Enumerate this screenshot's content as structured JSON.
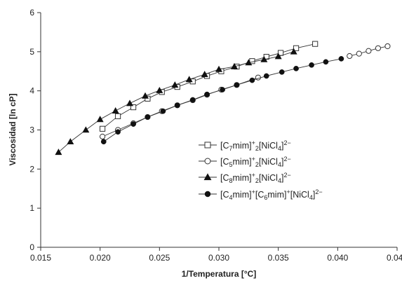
{
  "chart_data": {
    "type": "line",
    "title": "",
    "xlabel": "1/Temperatura [°C]",
    "ylabel": "Viscosidad [ln cP]",
    "xlim": [
      0.015,
      0.045
    ],
    "ylim": [
      0,
      6
    ],
    "x_ticks": [
      "0.015",
      "0.020",
      "0.025",
      "0.030",
      "0.035",
      "0.040",
      "0.045"
    ],
    "y_ticks": [
      "0",
      "1",
      "2",
      "3",
      "4",
      "5",
      "6"
    ],
    "grid": false,
    "legend_position": "right",
    "series": [
      {
        "name": "[C7mim]+2[NiCl4]2−",
        "marker": "open-square",
        "x": [
          0.0202,
          0.0215,
          0.0228,
          0.024,
          0.0252,
          0.0265,
          0.0278,
          0.029,
          0.0302,
          0.0315,
          0.0328,
          0.034,
          0.0352,
          0.0365,
          0.0381
        ],
        "y": [
          3.03,
          3.35,
          3.58,
          3.8,
          3.97,
          4.1,
          4.24,
          4.38,
          4.5,
          4.62,
          4.76,
          4.87,
          4.97,
          5.09,
          5.2
        ]
      },
      {
        "name": "[C5mim]+2[NiCl4]2−",
        "marker": "open-circle",
        "x": [
          0.0202,
          0.0215,
          0.0228,
          0.024,
          0.0252,
          0.0265,
          0.0278,
          0.029,
          0.0302,
          0.0315,
          0.0333
        ],
        "y": [
          2.83,
          3.0,
          3.17,
          3.33,
          3.48,
          3.63,
          3.76,
          3.9,
          4.03,
          4.15,
          4.34
        ]
      },
      {
        "name": "[C8mim]+2[NiCl4]2−",
        "marker": "filled-triangle",
        "x": [
          0.0165,
          0.0175,
          0.0188,
          0.02,
          0.0213,
          0.0225,
          0.0238,
          0.025,
          0.0263,
          0.0275,
          0.0288,
          0.03,
          0.0313,
          0.0325,
          0.0338,
          0.035,
          0.0363
        ],
        "y": [
          2.43,
          2.7,
          3.0,
          3.27,
          3.49,
          3.68,
          3.87,
          4.01,
          4.15,
          4.29,
          4.42,
          4.55,
          4.62,
          4.72,
          4.8,
          4.88,
          5.0
        ]
      },
      {
        "name": "[C4mim]+[C6mim]+[NiCl4]2−",
        "marker": "filled-circle",
        "x": [
          0.0203,
          0.0215,
          0.0228,
          0.024,
          0.0253,
          0.0265,
          0.0278,
          0.029,
          0.0303,
          0.0315,
          0.0328,
          0.034,
          0.0353,
          0.0365,
          0.0378,
          0.039,
          0.0403
        ],
        "y": [
          2.7,
          2.95,
          3.15,
          3.33,
          3.48,
          3.63,
          3.77,
          3.91,
          4.03,
          4.15,
          4.27,
          4.38,
          4.48,
          4.57,
          4.66,
          4.74,
          4.82
        ]
      },
      {
        "name": "",
        "marker": "open-circle",
        "x": [
          0.041,
          0.0418,
          0.0426,
          0.0434,
          0.0442
        ],
        "y": [
          4.89,
          4.95,
          5.02,
          5.09,
          5.14
        ]
      }
    ]
  },
  "legend": {
    "entries": [
      {
        "prefix": "[C",
        "sub1": "7",
        "mid": "mim]",
        "sup1": "+",
        "sub2": "2",
        "mid2": "[NiCl",
        "sub3": "4",
        "end": "]",
        "sup2": "2−"
      },
      {
        "prefix": "[C",
        "sub1": "5",
        "mid": "mim]",
        "sup1": "+",
        "sub2": "2",
        "mid2": "[NiCl",
        "sub3": "4",
        "end": "]",
        "sup2": "2−"
      },
      {
        "prefix": "[C",
        "sub1": "8",
        "mid": "mim]",
        "sup1": "+",
        "sub2": "2",
        "mid2": "[NiCl",
        "sub3": "4",
        "end": "]",
        "sup2": "2−"
      }
    ],
    "entry4": {
      "a": "[C",
      "a_sub": "4",
      "b": "mim]",
      "b_sup": "+",
      "c": "[C",
      "c_sub": "6",
      "d": "mim]",
      "d_sup": "+",
      "e": "[NiCl",
      "e_sub": "4",
      "f": "]",
      "f_sup": "2−"
    }
  }
}
